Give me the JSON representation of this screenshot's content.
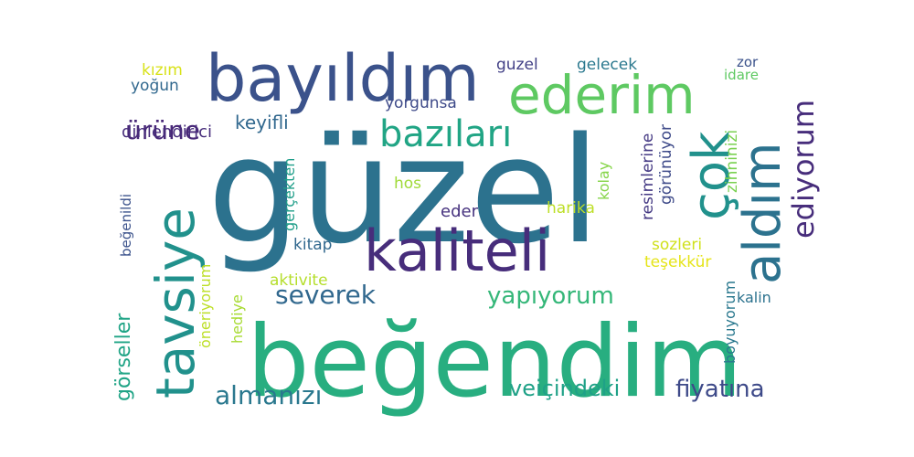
{
  "colors": {
    "background": "#ffffff"
  },
  "words": [
    {
      "text": "güzel",
      "color": "#2c728e",
      "vertical": false
    },
    {
      "text": "beğendim",
      "color": "#28ae80",
      "vertical": false
    },
    {
      "text": "bayıldım",
      "color": "#3b528b",
      "vertical": false
    },
    {
      "text": "ederim",
      "color": "#5ec962",
      "vertical": false
    },
    {
      "text": "tavsiye",
      "color": "#21918c",
      "vertical": true
    },
    {
      "text": "kaliteli",
      "color": "#472d7b",
      "vertical": false
    },
    {
      "text": "çok",
      "color": "#21918c",
      "vertical": true
    },
    {
      "text": "aldım",
      "color": "#2c728e",
      "vertical": true
    },
    {
      "text": "bazıları",
      "color": "#21a585",
      "vertical": false
    },
    {
      "text": "ediyorum",
      "color": "#472d7b",
      "vertical": true
    },
    {
      "text": "ürüne",
      "color": "#482878",
      "vertical": false
    },
    {
      "text": "severek",
      "color": "#31688e",
      "vertical": false
    },
    {
      "text": "yapıyorum",
      "color": "#35b779",
      "vertical": false
    },
    {
      "text": "almanızı",
      "color": "#2a788e",
      "vertical": false
    },
    {
      "text": "veiçindeki",
      "color": "#1fa187",
      "vertical": false
    },
    {
      "text": "fiyatına",
      "color": "#3e4a89",
      "vertical": false
    },
    {
      "text": "görseller",
      "color": "#20a486",
      "vertical": true
    },
    {
      "text": "keyifli",
      "color": "#31688e",
      "vertical": false
    },
    {
      "text": "dinlendirici",
      "color": "#472d7b",
      "vertical": false
    },
    {
      "text": "yoğun",
      "color": "#31688e",
      "vertical": false
    },
    {
      "text": "kızım",
      "color": "#d8e219",
      "vertical": false
    },
    {
      "text": "yorgunsa",
      "color": "#3e4a89",
      "vertical": false
    },
    {
      "text": "guzel",
      "color": "#424086",
      "vertical": false
    },
    {
      "text": "gelecek",
      "color": "#2a788e",
      "vertical": false
    },
    {
      "text": "zor",
      "color": "#3b528b",
      "vertical": false
    },
    {
      "text": "idare",
      "color": "#5ec962",
      "vertical": false
    },
    {
      "text": "resimlerine",
      "color": "#443983",
      "vertical": true
    },
    {
      "text": "görünüyor",
      "color": "#3e4a89",
      "vertical": true
    },
    {
      "text": "zihninizi",
      "color": "#7ad151",
      "vertical": true
    },
    {
      "text": "kolay",
      "color": "#86d549",
      "vertical": true
    },
    {
      "text": "gerçekten",
      "color": "#1f9e89",
      "vertical": true
    },
    {
      "text": "beğenildi",
      "color": "#3b528b",
      "vertical": true
    },
    {
      "text": "hos",
      "color": "#a0da39",
      "vertical": false
    },
    {
      "text": "eder",
      "color": "#46327e",
      "vertical": false
    },
    {
      "text": "harika",
      "color": "#bddf26",
      "vertical": false
    },
    {
      "text": "kitap",
      "color": "#31688e",
      "vertical": false
    },
    {
      "text": "sozleri",
      "color": "#d0e11c",
      "vertical": false
    },
    {
      "text": "teşekkür",
      "color": "#e5e419",
      "vertical": false
    },
    {
      "text": "aktivite",
      "color": "#b5de2b",
      "vertical": false
    },
    {
      "text": "kalin",
      "color": "#2c728e",
      "vertical": false
    },
    {
      "text": "hediye",
      "color": "#a8db34",
      "vertical": true
    },
    {
      "text": "öneriyorum",
      "color": "#bddf26",
      "vertical": true
    },
    {
      "text": "boyuyorum",
      "color": "#2a788e",
      "vertical": true
    }
  ]
}
